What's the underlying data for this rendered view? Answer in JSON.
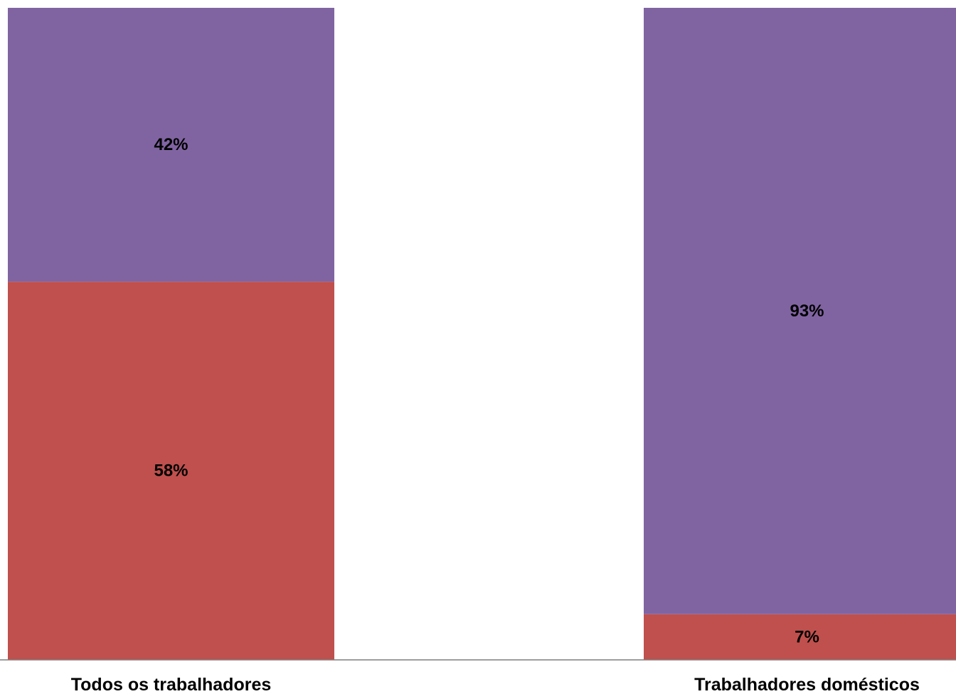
{
  "chart_data": {
    "type": "bar",
    "stacked": true,
    "orientation": "vertical",
    "categories": [
      "Todos os trabalhadores",
      "Trabalhadores domésticos"
    ],
    "series": [
      {
        "values": [
          58,
          7
        ],
        "labels": [
          "58%",
          "7%"
        ],
        "color": "#c0504d"
      },
      {
        "values": [
          42,
          93
        ],
        "labels": [
          "42%",
          "93%"
        ],
        "color": "#8064a2"
      }
    ],
    "ylim": [
      0,
      100
    ],
    "grid": false,
    "legend": "none"
  }
}
